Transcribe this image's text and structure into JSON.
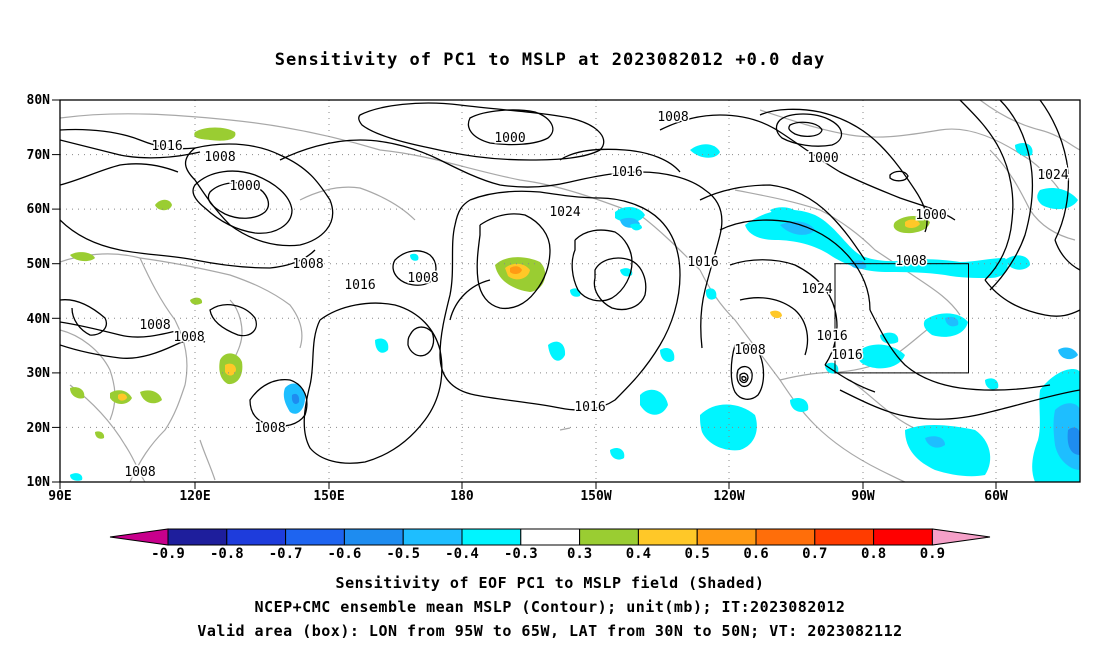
{
  "title": "Sensitivity of PC1 to MSLP at 2023082012 +0.0 day",
  "map": {
    "lon_labels": [
      "90E",
      "120E",
      "150E",
      "180",
      "150W",
      "120W",
      "90W",
      "60W"
    ],
    "lat_labels": [
      "80N",
      "70N",
      "60N",
      "50N",
      "40N",
      "30N",
      "20N",
      "10N"
    ],
    "contour_labels": [
      "1000",
      "1008",
      "1008",
      "1016",
      "1000",
      "1008",
      "1008",
      "1016",
      "1024",
      "1016",
      "1016",
      "1008",
      "1016",
      "1008",
      "1008",
      "1008",
      "1008",
      "1024",
      "1016",
      "1016",
      "1000",
      "1000",
      "1008",
      "1024"
    ],
    "valid_box": {
      "lon_west": -95,
      "lon_east": -65,
      "lat_south": 30,
      "lat_north": 50
    }
  },
  "colorbar": {
    "labels": [
      "-0.9",
      "-0.8",
      "-0.7",
      "-0.6",
      "-0.5",
      "-0.4",
      "-0.3",
      "0.3",
      "0.4",
      "0.5",
      "0.6",
      "0.7",
      "0.8",
      "0.9"
    ],
    "left_arrow_color": "#c8008c",
    "right_arrow_color": "#f5a0c8",
    "colors": [
      "#1e1e9c",
      "#1e3cdc",
      "#1e64f0",
      "#1e8cf0",
      "#1ebeff",
      "#00f5ff",
      "#ffffff",
      "#9acd32",
      "#ffc828",
      "#ff9a14",
      "#ff6e0a",
      "#ff3c00",
      "#ff0000"
    ]
  },
  "captions": {
    "line1": "Sensitivity of EOF PC1 to MSLP field (Shaded)",
    "line2": "NCEP+CMC ensemble mean MSLP (Contour); unit(mb); IT:2023082012",
    "line3": "Valid area (box): LON from 95W to 65W, LAT from 30N to 50N; VT: 2023082112"
  }
}
